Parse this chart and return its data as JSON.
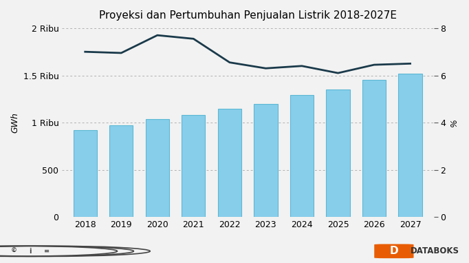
{
  "title": "Proyeksi dan Pertumbuhan Penjualan Listrik 2018-2027E",
  "years": [
    2018,
    2019,
    2020,
    2021,
    2022,
    2023,
    2024,
    2025,
    2026,
    2027
  ],
  "bar_values": [
    920,
    970,
    1040,
    1080,
    1150,
    1200,
    1290,
    1350,
    1450,
    1520
  ],
  "line_values": [
    7.0,
    6.95,
    7.7,
    7.55,
    6.55,
    6.3,
    6.4,
    6.1,
    6.45,
    6.5
  ],
  "bar_color": "#87CEEB",
  "bar_edgecolor": "#5BB8D4",
  "line_color": "#1a3a4a",
  "background_color": "#f2f2f2",
  "plot_bg_color": "#f2f2f2",
  "ylabel_left": "GWh",
  "ylabel_right": "%",
  "ylim_left": [
    0,
    2000
  ],
  "ylim_right": [
    0,
    8
  ],
  "yticks_left": [
    0,
    500,
    1000,
    1500,
    2000
  ],
  "ytick_labels_left": [
    "0",
    "500",
    "1 Ribu",
    "1.5 Ribu",
    "2 Ribu"
  ],
  "yticks_right": [
    0,
    2,
    4,
    6,
    8
  ],
  "title_fontsize": 11,
  "axis_fontsize": 9,
  "tick_fontsize": 9
}
